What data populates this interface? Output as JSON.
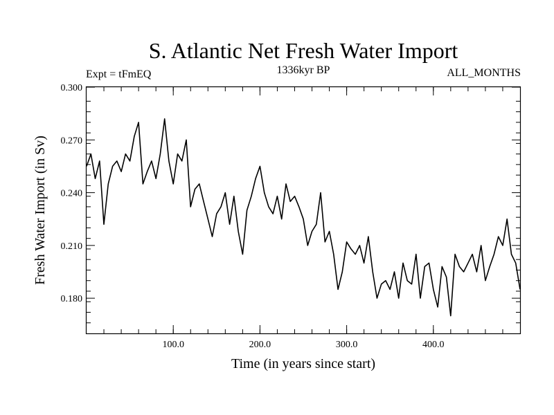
{
  "chart_data": {
    "type": "line",
    "title": "S. Atlantic Net Fresh Water Import",
    "subtitle": "1336kyr BP",
    "left_label": "Expt = tFmEQ",
    "right_label": "ALL_MONTHS",
    "xlabel": "Time (in years since start)",
    "ylabel": "Fresh Water Import (in Sv)",
    "xlim": [
      0,
      500
    ],
    "ylim": [
      0.16,
      0.3
    ],
    "x_ticks": [
      100,
      200,
      300,
      400
    ],
    "x_tick_labels": [
      "100.0",
      "200.0",
      "300.0",
      "400.0"
    ],
    "y_ticks": [
      0.18,
      0.21,
      0.24,
      0.27,
      0.3
    ],
    "y_tick_labels": [
      "0.180",
      "0.210",
      "0.240",
      "0.270",
      "0.300"
    ],
    "x_minor_step": 20,
    "y_minor_step": 0.006,
    "grid": false,
    "line_color": "#000000",
    "series": [
      {
        "name": "Net Fresh Water Import",
        "x": [
          0,
          5,
          10,
          15,
          20,
          25,
          30,
          35,
          40,
          45,
          50,
          55,
          60,
          65,
          70,
          75,
          80,
          85,
          90,
          95,
          100,
          105,
          110,
          115,
          120,
          125,
          130,
          135,
          140,
          145,
          150,
          155,
          160,
          165,
          170,
          175,
          180,
          185,
          190,
          195,
          200,
          205,
          210,
          215,
          220,
          225,
          230,
          235,
          240,
          245,
          250,
          255,
          260,
          265,
          270,
          275,
          280,
          285,
          290,
          295,
          300,
          305,
          310,
          315,
          320,
          325,
          330,
          335,
          340,
          345,
          350,
          355,
          360,
          365,
          370,
          375,
          380,
          385,
          390,
          395,
          400,
          405,
          410,
          415,
          420,
          425,
          430,
          435,
          440,
          445,
          450,
          455,
          460,
          465,
          470,
          475,
          480,
          485,
          490,
          495,
          500
        ],
        "values": [
          0.255,
          0.262,
          0.248,
          0.258,
          0.222,
          0.245,
          0.255,
          0.258,
          0.252,
          0.262,
          0.258,
          0.272,
          0.28,
          0.245,
          0.252,
          0.258,
          0.248,
          0.262,
          0.282,
          0.258,
          0.245,
          0.262,
          0.258,
          0.27,
          0.232,
          0.242,
          0.245,
          0.235,
          0.225,
          0.215,
          0.228,
          0.232,
          0.24,
          0.222,
          0.238,
          0.218,
          0.205,
          0.23,
          0.238,
          0.248,
          0.255,
          0.24,
          0.232,
          0.228,
          0.238,
          0.225,
          0.245,
          0.235,
          0.238,
          0.232,
          0.225,
          0.21,
          0.218,
          0.222,
          0.24,
          0.212,
          0.218,
          0.205,
          0.185,
          0.195,
          0.212,
          0.208,
          0.205,
          0.21,
          0.2,
          0.215,
          0.195,
          0.18,
          0.188,
          0.19,
          0.185,
          0.195,
          0.18,
          0.2,
          0.19,
          0.188,
          0.205,
          0.18,
          0.198,
          0.2,
          0.185,
          0.175,
          0.198,
          0.192,
          0.17,
          0.205,
          0.198,
          0.195,
          0.2,
          0.205,
          0.195,
          0.21,
          0.19,
          0.198,
          0.205,
          0.215,
          0.21,
          0.225,
          0.205,
          0.2,
          0.185
        ]
      }
    ]
  }
}
